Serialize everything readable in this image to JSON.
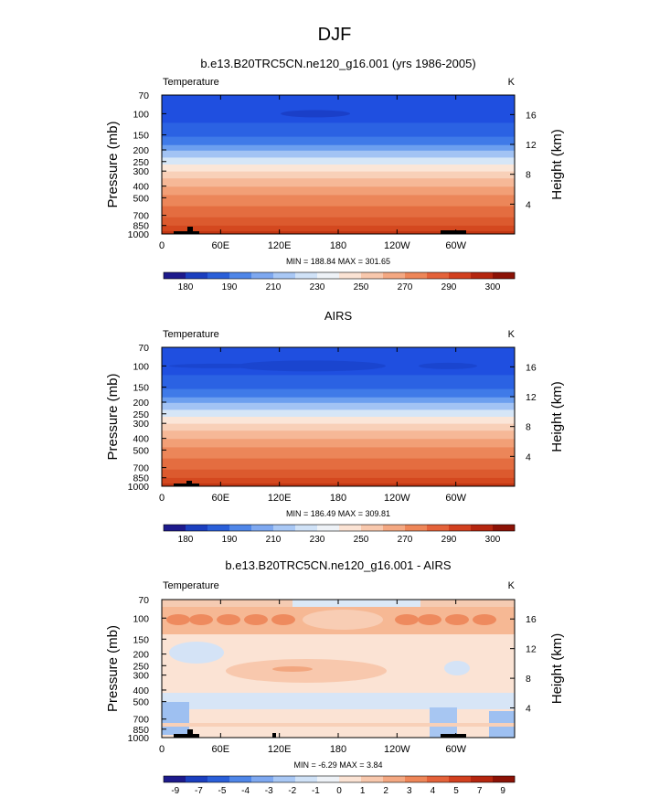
{
  "page_title": "DJF",
  "chart_data": [
    {
      "type": "heatmap",
      "title": "b.e13.B20TRC5CN.ne120_g16.001 (yrs 1986-2005)",
      "left_label": "Temperature",
      "units": "K",
      "xlabel": "",
      "ylabel": "Pressure (mb)",
      "y2label": "Height (km)",
      "x_ticks": [
        "0",
        "60E",
        "120E",
        "180",
        "120W",
        "60W"
      ],
      "y_ticks": [
        70,
        100,
        150,
        200,
        250,
        300,
        400,
        500,
        700,
        850,
        1000
      ],
      "y2_ticks": [
        4,
        8,
        12,
        16
      ],
      "stats": "MIN = 188.84  MAX = 301.65",
      "colorbar_labels": [
        "180",
        "190",
        "210",
        "230",
        "250",
        "270",
        "290",
        "300"
      ],
      "colorbar_colors": [
        "#1d1a8c",
        "#1b3fbf",
        "#2a5fd9",
        "#4f86e8",
        "#7ea8f0",
        "#a9c8f5",
        "#d0e2f7",
        "#eef2f7",
        "#fbe3d4",
        "#f8c8ad",
        "#f4a882",
        "#ee8658",
        "#e4623a",
        "#d2401f",
        "#b5260f",
        "#8c1206"
      ]
    },
    {
      "type": "heatmap",
      "title": "AIRS",
      "left_label": "Temperature",
      "units": "K",
      "xlabel": "",
      "ylabel": "Pressure (mb)",
      "y2label": "Height (km)",
      "x_ticks": [
        "0",
        "60E",
        "120E",
        "180",
        "120W",
        "60W"
      ],
      "y_ticks": [
        70,
        100,
        150,
        200,
        250,
        300,
        400,
        500,
        700,
        850,
        1000
      ],
      "y2_ticks": [
        4,
        8,
        12,
        16
      ],
      "stats": "MIN = 186.49  MAX = 309.81",
      "colorbar_labels": [
        "180",
        "190",
        "210",
        "230",
        "250",
        "270",
        "290",
        "300"
      ],
      "colorbar_colors": [
        "#1d1a8c",
        "#1b3fbf",
        "#2a5fd9",
        "#4f86e8",
        "#7ea8f0",
        "#a9c8f5",
        "#d0e2f7",
        "#eef2f7",
        "#fbe3d4",
        "#f8c8ad",
        "#f4a882",
        "#ee8658",
        "#e4623a",
        "#d2401f",
        "#b5260f",
        "#8c1206"
      ]
    },
    {
      "type": "heatmap",
      "title": "b.e13.B20TRC5CN.ne120_g16.001 - AIRS",
      "left_label": "Temperature",
      "units": "K",
      "xlabel": "",
      "ylabel": "Pressure (mb)",
      "y2label": "Height (km)",
      "x_ticks": [
        "0",
        "60E",
        "120E",
        "180",
        "120W",
        "60W"
      ],
      "y_ticks": [
        70,
        100,
        150,
        200,
        250,
        300,
        400,
        500,
        700,
        850,
        1000
      ],
      "y2_ticks": [
        4,
        8,
        12,
        16
      ],
      "stats": "MIN =  -6.29  MAX =   3.84",
      "colorbar_labels": [
        "-9",
        "-7",
        "-5",
        "-4",
        "-3",
        "-2",
        "-1",
        "0",
        "1",
        "2",
        "3",
        "4",
        "5",
        "7",
        "9"
      ],
      "colorbar_colors": [
        "#1d1a8c",
        "#1b3fbf",
        "#2a5fd9",
        "#4f86e8",
        "#7ea8f0",
        "#a9c8f5",
        "#d0e2f7",
        "#eef2f7",
        "#fbe3d4",
        "#f8c8ad",
        "#f4a882",
        "#ee8658",
        "#e4623a",
        "#d2401f",
        "#b5260f",
        "#8c1206"
      ]
    }
  ]
}
